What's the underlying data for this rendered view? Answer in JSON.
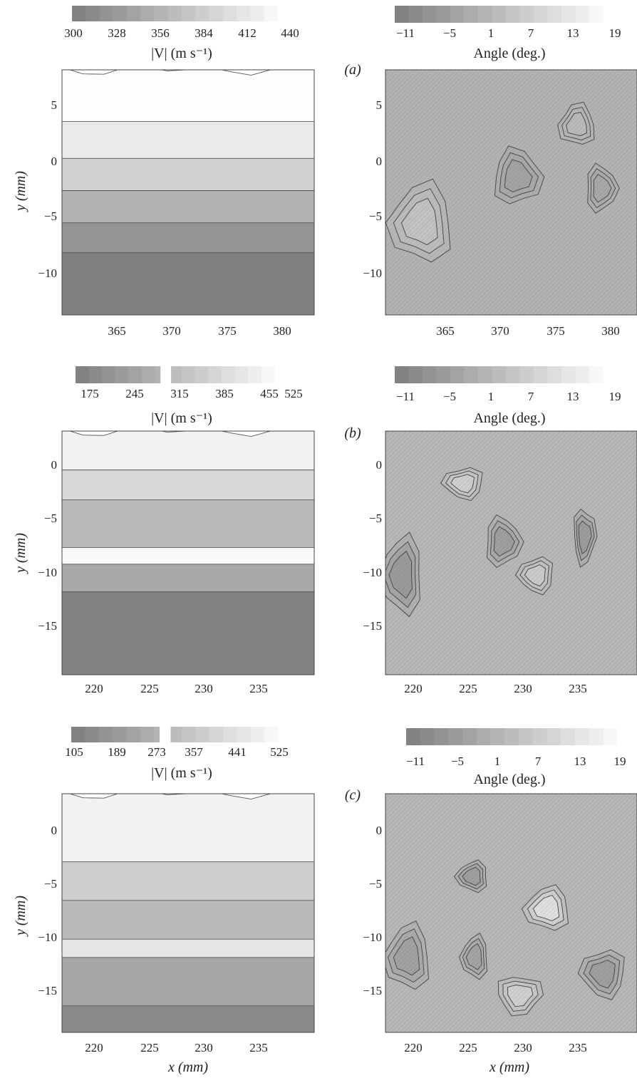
{
  "figure": {
    "panels": [
      {
        "label": "(a)",
        "speed": {
          "colorbar_ticks": [
            "300",
            "328",
            "356",
            "384",
            "412",
            "440"
          ],
          "colorbar_label": "|V| (m s⁻¹)",
          "x_ticks": [
            "365",
            "370",
            "375",
            "380"
          ],
          "y_ticks": [
            "5",
            "0",
            "−5",
            "−10"
          ],
          "ylabel": "y (mm)",
          "xlabel": ""
        },
        "angle": {
          "colorbar_ticks": [
            "−11",
            "−5",
            "1",
            "7",
            "13",
            "19"
          ],
          "colorbar_label": "Angle (deg.)",
          "x_ticks": [
            "365",
            "370",
            "375",
            "380"
          ],
          "y_ticks": [
            "5",
            "0",
            "−5",
            "−10"
          ],
          "xlabel": ""
        }
      },
      {
        "label": "(b)",
        "speed": {
          "colorbar_ticks": [
            "175",
            "245",
            "315",
            "385",
            "455",
            "525"
          ],
          "colorbar_label": "|V| (m s⁻¹)",
          "x_ticks": [
            "220",
            "225",
            "230",
            "235"
          ],
          "y_ticks": [
            "0",
            "−5",
            "−10",
            "−15"
          ],
          "ylabel": "y (mm)",
          "xlabel": ""
        },
        "angle": {
          "colorbar_ticks": [
            "−11",
            "−5",
            "1",
            "7",
            "13",
            "19"
          ],
          "colorbar_label": "Angle (deg.)",
          "x_ticks": [
            "220",
            "225",
            "230",
            "235"
          ],
          "y_ticks": [
            "0",
            "−5",
            "−10",
            "−15"
          ],
          "xlabel": ""
        }
      },
      {
        "label": "(c)",
        "speed": {
          "colorbar_ticks": [
            "105",
            "189",
            "273",
            "357",
            "441",
            "525"
          ],
          "colorbar_label": "|V| (m s⁻¹)",
          "x_ticks": [
            "220",
            "225",
            "230",
            "235"
          ],
          "y_ticks": [
            "0",
            "−5",
            "−10",
            "−15"
          ],
          "ylabel": "y (mm)",
          "xlabel": "x (mm)"
        },
        "angle": {
          "colorbar_ticks": [
            "−11",
            "−5",
            "1",
            "7",
            "13",
            "19"
          ],
          "colorbar_label": "Angle (deg.)",
          "x_ticks": [
            "220",
            "225",
            "230",
            "235"
          ],
          "y_ticks": [
            "0",
            "−5",
            "−10",
            "−15"
          ],
          "xlabel": "x (mm)"
        }
      }
    ]
  },
  "chart_data": [
    {
      "type": "heatmap",
      "panel": "(a)",
      "title": "",
      "quantity": "|V| (m s⁻¹)",
      "xlabel": "",
      "ylabel": "y (mm)",
      "xlim": [
        360.5,
        381.5
      ],
      "ylim": [
        -13.5,
        7.8
      ],
      "colorbar_range": [
        300,
        440
      ],
      "bands": [
        {
          "y_low": -13.5,
          "y_high": -7.6,
          "value": 308
        },
        {
          "y_low": -7.6,
          "y_high": -5.0,
          "value": 330
        },
        {
          "y_low": -5.0,
          "y_high": -2.2,
          "value": 360
        },
        {
          "y_low": -2.2,
          "y_high": 0.6,
          "value": 392
        },
        {
          "y_low": 0.6,
          "y_high": 3.8,
          "value": 418
        },
        {
          "y_low": 3.8,
          "y_high": 7.8,
          "value": 438
        }
      ]
    },
    {
      "type": "heatmap",
      "panel": "(a)",
      "title": "",
      "quantity": "Angle (deg.)",
      "xlabel": "",
      "ylabel": "",
      "xlim": [
        360.5,
        381.5
      ],
      "ylim": [
        -13.5,
        7.8
      ],
      "colorbar_range": [
        -11,
        19
      ],
      "background_value": 2,
      "blobs": [
        {
          "x": 363.5,
          "y": -5.5,
          "rx": 2.6,
          "ry": 3.4,
          "value": 8
        },
        {
          "x": 371.5,
          "y": -1.5,
          "rx": 2.0,
          "ry": 2.4,
          "value": -4
        },
        {
          "x": 378.5,
          "y": -2.5,
          "rx": 1.3,
          "ry": 2.0,
          "value": -2
        },
        {
          "x": 376.5,
          "y": 3.0,
          "rx": 1.5,
          "ry": 1.8,
          "value": 5
        }
      ]
    },
    {
      "type": "heatmap",
      "panel": "(b)",
      "title": "",
      "quantity": "|V| (m s⁻¹)",
      "xlabel": "",
      "ylabel": "y (mm)",
      "xlim": [
        217,
        239.5
      ],
      "ylim": [
        -19.5,
        2.5
      ],
      "colorbar_range": [
        140,
        560
      ],
      "bands": [
        {
          "y_low": -19.5,
          "y_high": -11.5,
          "value": 170
        },
        {
          "y_low": -11.5,
          "y_high": -9.0,
          "value": 290
        },
        {
          "y_low": -9.0,
          "y_high": -7.5,
          "value": 540
        },
        {
          "y_low": -7.5,
          "y_high": -3.2,
          "value": 345
        },
        {
          "y_low": -3.2,
          "y_high": -0.5,
          "value": 440
        },
        {
          "y_low": -0.5,
          "y_high": 2.5,
          "value": 520
        }
      ]
    },
    {
      "type": "heatmap",
      "panel": "(b)",
      "title": "",
      "quantity": "Angle (deg.)",
      "xlabel": "",
      "ylabel": "",
      "xlim": [
        217,
        239.5
      ],
      "ylim": [
        -19.5,
        2.5
      ],
      "colorbar_range": [
        -11,
        19
      ],
      "background_value": 3,
      "blobs": [
        {
          "x": 218.5,
          "y": -10.5,
          "rx": 1.8,
          "ry": 3.5,
          "value": -8
        },
        {
          "x": 227.5,
          "y": -7.5,
          "rx": 1.6,
          "ry": 2.2,
          "value": -6
        },
        {
          "x": 234.8,
          "y": -7.0,
          "rx": 1.0,
          "ry": 2.5,
          "value": -7
        },
        {
          "x": 224.0,
          "y": -2.2,
          "rx": 1.8,
          "ry": 1.4,
          "value": 12
        },
        {
          "x": 230.5,
          "y": -10.5,
          "rx": 1.6,
          "ry": 1.6,
          "value": 10
        }
      ]
    },
    {
      "type": "heatmap",
      "panel": "(c)",
      "title": "",
      "quantity": "|V| (m s⁻¹)",
      "xlabel": "x (mm)",
      "ylabel": "y (mm)",
      "xlim": [
        217,
        239.5
      ],
      "ylim": [
        -19,
        3.2
      ],
      "colorbar_range": [
        90,
        560
      ],
      "bands": [
        {
          "y_low": -19.0,
          "y_high": -16.0,
          "value": 150
        },
        {
          "y_low": -16.0,
          "y_high": -11.5,
          "value": 250
        },
        {
          "y_low": -11.5,
          "y_high": -9.8,
          "value": 470
        },
        {
          "y_low": -9.8,
          "y_high": -6.2,
          "value": 320
        },
        {
          "y_low": -6.2,
          "y_high": -2.6,
          "value": 390
        },
        {
          "y_low": -2.6,
          "y_high": 3.2,
          "value": 515
        }
      ]
    },
    {
      "type": "heatmap",
      "panel": "(c)",
      "title": "",
      "quantity": "Angle (deg.)",
      "xlabel": "x (mm)",
      "ylabel": "",
      "xlim": [
        217,
        239.5
      ],
      "ylim": [
        -19,
        3.2
      ],
      "colorbar_range": [
        -11,
        19
      ],
      "background_value": 3,
      "blobs": [
        {
          "x": 231.5,
          "y": -7.5,
          "rx": 2.0,
          "ry": 2.0,
          "value": 18
        },
        {
          "x": 224.8,
          "y": -4.5,
          "rx": 1.4,
          "ry": 1.4,
          "value": -6
        },
        {
          "x": 236.5,
          "y": -13.5,
          "rx": 2.0,
          "ry": 2.2,
          "value": -6
        },
        {
          "x": 219.0,
          "y": -12.0,
          "rx": 2.0,
          "ry": 3.0,
          "value": -5
        },
        {
          "x": 225.0,
          "y": -12.0,
          "rx": 1.2,
          "ry": 2.0,
          "value": -4
        },
        {
          "x": 229.0,
          "y": -15.5,
          "rx": 2.0,
          "ry": 1.8,
          "value": 12
        }
      ]
    }
  ]
}
